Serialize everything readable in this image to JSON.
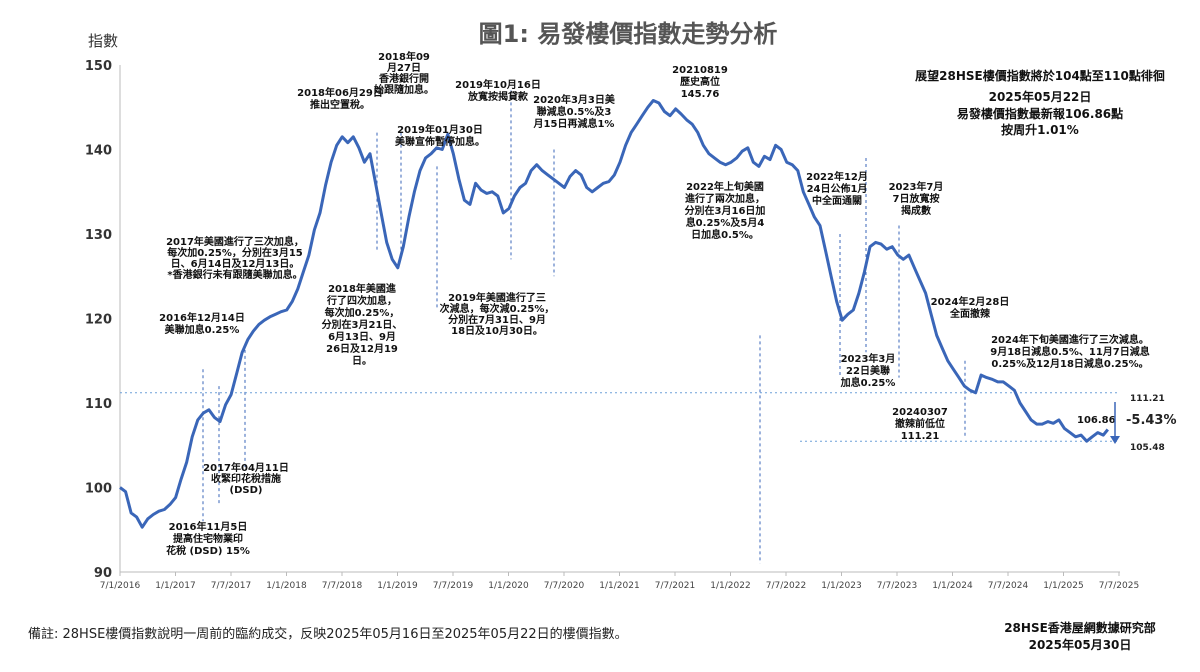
{
  "chart_data": {
    "type": "line",
    "title": "圖1: 易發樓價指數走勢分析",
    "ylabel": "指數",
    "ylim": [
      90,
      150
    ],
    "yticks": [
      90,
      100,
      110,
      120,
      130,
      140,
      150
    ],
    "xticks": [
      "7/1/2016",
      "1/1/2017",
      "7/7/2017",
      "1/1/2018",
      "7/7/2018",
      "1/1/2019",
      "7/7/2019",
      "1/1/2020",
      "7/7/2020",
      "1/1/2021",
      "7/7/2021",
      "1/1/2022",
      "7/7/2022",
      "1/1/2023",
      "7/7/2023",
      "1/1/2024",
      "7/7/2024",
      "1/1/2025",
      "7/7/2025"
    ],
    "line_color": "#3a66b8",
    "series": [
      {
        "x": [
          2016.5,
          2016.55,
          2016.6,
          2016.65,
          2016.7,
          2016.75,
          2016.8,
          2016.85,
          2016.9,
          2016.95,
          2017.0,
          2017.05,
          2017.1,
          2017.15,
          2017.2,
          2017.25,
          2017.3,
          2017.35,
          2017.4,
          2017.45,
          2017.5,
          2017.55,
          2017.6,
          2017.65,
          2017.7,
          2017.75,
          2017.8,
          2017.85,
          2017.9,
          2017.95,
          2018.0,
          2018.05,
          2018.1,
          2018.15,
          2018.2,
          2018.25,
          2018.3,
          2018.35,
          2018.4,
          2018.45,
          2018.5,
          2018.55,
          2018.6,
          2018.65,
          2018.7,
          2018.75,
          2018.8,
          2018.85,
          2018.9,
          2018.95,
          2019.0,
          2019.05,
          2019.1,
          2019.15,
          2019.2,
          2019.25,
          2019.3,
          2019.35,
          2019.4,
          2019.45,
          2019.5,
          2019.55,
          2019.6,
          2019.65,
          2019.7,
          2019.75,
          2019.8,
          2019.85,
          2019.9,
          2019.95,
          2020.0,
          2020.05,
          2020.1,
          2020.15,
          2020.2,
          2020.25,
          2020.3,
          2020.35,
          2020.4,
          2020.45,
          2020.5,
          2020.55,
          2020.6,
          2020.65,
          2020.7,
          2020.75,
          2020.8,
          2020.85,
          2020.9,
          2020.95,
          2021.0,
          2021.05,
          2021.1,
          2021.15,
          2021.2,
          2021.25,
          2021.3,
          2021.35,
          2021.4,
          2021.45,
          2021.5,
          2021.55,
          2021.6,
          2021.65,
          2021.7,
          2021.75,
          2021.8,
          2021.85,
          2021.9,
          2021.95,
          2022.0,
          2022.05,
          2022.1,
          2022.15,
          2022.2,
          2022.25,
          2022.3,
          2022.35,
          2022.4,
          2022.45,
          2022.5,
          2022.55,
          2022.6,
          2022.65,
          2022.7,
          2022.75,
          2022.8,
          2022.85,
          2022.9,
          2022.95,
          2023.0,
          2023.05,
          2023.1,
          2023.15,
          2023.2,
          2023.25,
          2023.3,
          2023.35,
          2023.4,
          2023.45,
          2023.5,
          2023.55,
          2023.6,
          2023.65,
          2023.7,
          2023.75,
          2023.8,
          2023.85,
          2023.9,
          2023.95,
          2024.0,
          2024.05,
          2024.1,
          2024.15,
          2024.2,
          2024.25,
          2024.3,
          2024.35,
          2024.4,
          2024.45,
          2024.5,
          2024.55,
          2024.6,
          2024.65,
          2024.7,
          2024.75,
          2024.8,
          2024.85,
          2024.9,
          2024.95,
          2025.0,
          2025.05,
          2025.1,
          2025.15,
          2025.2,
          2025.25,
          2025.3,
          2025.35,
          2025.39
        ],
        "values": [
          100.0,
          99.5,
          97.0,
          96.5,
          95.3,
          96.3,
          96.8,
          97.2,
          97.4,
          98.0,
          98.8,
          101.0,
          103.0,
          106.0,
          108.0,
          108.8,
          109.2,
          108.3,
          107.8,
          109.8,
          111.0,
          113.5,
          116.0,
          117.5,
          118.5,
          119.3,
          119.8,
          120.2,
          120.5,
          120.8,
          121.0,
          122.0,
          123.5,
          125.5,
          127.5,
          130.5,
          132.5,
          135.8,
          138.5,
          140.5,
          141.5,
          140.8,
          141.5,
          140.2,
          138.5,
          139.5,
          136.0,
          132.5,
          129.0,
          127.0,
          126.0,
          128.5,
          132.0,
          135.0,
          137.5,
          139.0,
          139.5,
          140.2,
          140.0,
          141.8,
          139.5,
          136.5,
          134.0,
          133.5,
          136.0,
          135.2,
          134.8,
          135.0,
          134.5,
          132.5,
          133.0,
          134.5,
          135.5,
          136.0,
          137.5,
          138.2,
          137.5,
          137.0,
          136.5,
          136.0,
          135.5,
          136.8,
          137.5,
          137.0,
          135.5,
          135.0,
          135.5,
          136.0,
          136.2,
          137.0,
          138.5,
          140.5,
          142.0,
          143.0,
          144.0,
          145.0,
          145.8,
          145.5,
          144.5,
          144.0,
          144.8,
          144.2,
          143.5,
          143.0,
          142.0,
          140.5,
          139.5,
          139.0,
          138.5,
          138.2,
          138.5,
          139.0,
          139.8,
          140.2,
          138.5,
          138.0,
          139.2,
          138.8,
          140.5,
          140.0,
          138.5,
          138.2,
          137.5,
          135.0,
          133.5,
          132.0,
          131.0,
          128.0,
          125.0,
          122.0,
          119.8,
          120.5,
          121.0,
          123.0,
          125.5,
          128.5,
          129.0,
          128.8,
          128.2,
          128.5,
          127.5,
          127.0,
          127.5,
          126.0,
          124.5,
          123.0,
          120.5,
          118.0,
          116.5,
          115.0,
          114.0,
          113.0,
          112.0,
          111.5,
          111.21,
          113.3,
          113.0,
          112.8,
          112.5,
          112.5,
          112.0,
          111.5,
          110.0,
          109.0,
          108.0,
          107.5,
          107.5,
          107.8,
          107.6,
          108.0,
          107.0,
          106.5,
          106.0,
          106.2,
          105.48,
          106.0,
          106.5,
          106.2,
          106.86
        ]
      }
    ],
    "annotations": [
      {
        "lines": [
          "2016年11月5日",
          "提高住宅物業印",
          "花稅 (DSD) 15%"
        ]
      },
      {
        "lines": [
          "2016年12月14日",
          "美聯加息0.25%"
        ]
      },
      {
        "lines": [
          "2017年美國進行了三次加息，",
          "每次加0.25%，分別在3月15",
          "日、6月14日及12月13日。",
          "*香港銀行未有跟隨美聯加息。"
        ]
      },
      {
        "lines": [
          "2017年04月11日",
          "收緊印花稅措施",
          "(DSD)"
        ]
      },
      {
        "lines": [
          "2018年美國進",
          "行了四次加息，",
          "每次加0.25%，",
          "分別在3月21日、",
          "6月13日、9月",
          "26日及12月19",
          "日。"
        ]
      },
      {
        "lines": [
          "2018年06月29日",
          "推出空置稅。"
        ]
      },
      {
        "lines": [
          "2018年09",
          "月27日",
          "香港銀行開",
          "始跟隨加息。"
        ]
      },
      {
        "lines": [
          "2019年01月30日",
          "美聯宣佈暫停加息。"
        ]
      },
      {
        "lines": [
          "2019年美國進行了三",
          "次減息，每次減0.25%，",
          "分別在7月31日、9月",
          "18日及10月30日。"
        ]
      },
      {
        "lines": [
          "2019年10月16日",
          "放寬按揭貸款"
        ]
      },
      {
        "lines": [
          "2020年3月3日美",
          "聯減息0.5%及3",
          "月15日再減息1%"
        ]
      },
      {
        "lines": [
          "20210819",
          "歷史高位",
          "145.76"
        ]
      },
      {
        "lines": [
          "2022年上旬美國",
          "進行了兩次加息，",
          "分別在3月16日加",
          "息0.25%及5月4",
          "日加息0.5%。"
        ]
      },
      {
        "lines": [
          "2022年12月",
          "24日公佈1月",
          "中全面通關"
        ]
      },
      {
        "lines": [
          "2023年3月",
          "22日美聯",
          "加息0.25%"
        ]
      },
      {
        "lines": [
          "2023年7月",
          "7日放寬按",
          "揭成數"
        ]
      },
      {
        "lines": [
          "2024年2月28日",
          "全面撤辣"
        ]
      },
      {
        "lines": [
          "20240307",
          "撤辣前低位",
          "111.21"
        ]
      },
      {
        "lines": [
          "2024年下旬美國進行了三次減息。",
          "9月18日減息0.5%、11月7日減息",
          "0.25%及12月18日減息0.25%。"
        ]
      }
    ],
    "info_box": [
      "展望28HSE樓價指數將於104點至110點徘徊",
      "2025年05月22日",
      "易發樓價指數最新報106.86點",
      "按周升1.01%"
    ],
    "ref_levels": [
      111.21,
      105.48
    ],
    "ref_labels": [
      "111.21",
      "105.48"
    ],
    "latest_label": "106.86",
    "change_label": "-5.43%"
  },
  "footer": {
    "note": "備註: 28HSE樓價指數說明一周前的臨約成交，反映2025年05月16日至2025年05月22日的樓價指數。",
    "org": "28HSE香港屋網數據研究部",
    "date": "2025年05月30日"
  }
}
